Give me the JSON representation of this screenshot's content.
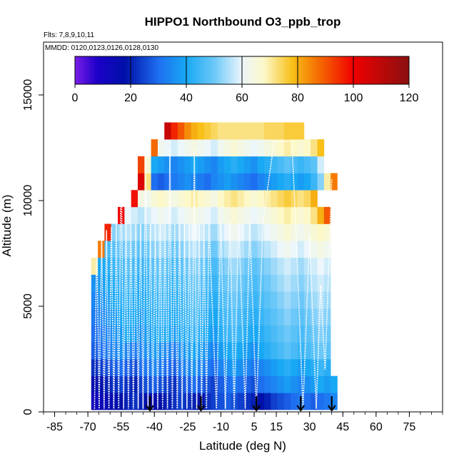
{
  "chart_data": {
    "type": "heatmap",
    "title": "HIPPO1 Northbound O3_ppb_trop",
    "flights_note": "Flts: 7,8,9,10,11",
    "dates_note": "MMDD: 0120,0123,0126,0128,0130",
    "xlabel": "Latitude (deg N)",
    "ylabel": "Altitude (m)",
    "xlim": [
      -90,
      90
    ],
    "ylim": [
      0,
      17500
    ],
    "x_ticks": [
      -85,
      -70,
      -55,
      -40,
      -25,
      -10,
      5,
      15,
      30,
      45,
      60,
      75
    ],
    "x_tick_labels": [
      "-85",
      "-70",
      "-55",
      "-40",
      "-25",
      "-10",
      "5",
      "15",
      "30",
      "45",
      "60",
      "75"
    ],
    "y_ticks": [
      0,
      5000,
      10000,
      15000
    ],
    "y_tick_labels": [
      "0",
      "5000",
      "10000",
      "15000"
    ],
    "colorbar": {
      "min": 0,
      "max": 120,
      "ticks": [
        0,
        20,
        40,
        60,
        80,
        100,
        120
      ],
      "tick_labels": [
        "0",
        "20",
        "40",
        "60",
        "80",
        "100",
        "120"
      ],
      "stops": [
        {
          "v": 0,
          "color": "#7a1ee8"
        },
        {
          "v": 8,
          "color": "#1c00c8"
        },
        {
          "v": 18,
          "color": "#0010a8"
        },
        {
          "v": 30,
          "color": "#1e6ef0"
        },
        {
          "v": 40,
          "color": "#18a8f4"
        },
        {
          "v": 50,
          "color": "#6cc8f8"
        },
        {
          "v": 60,
          "color": "#ecf6fb"
        },
        {
          "v": 68,
          "color": "#fcf8c8"
        },
        {
          "v": 78,
          "color": "#f8c018"
        },
        {
          "v": 88,
          "color": "#f46800"
        },
        {
          "v": 100,
          "color": "#f00000"
        },
        {
          "v": 120,
          "color": "#8a1010"
        }
      ]
    },
    "profile_markers_lat": [
      -42,
      -19,
      6,
      26,
      40
    ],
    "altitude_levels_m": [
      500,
      1300,
      2100,
      2900,
      3700,
      4500,
      5300,
      6100,
      6900,
      7700,
      8500,
      9300,
      10100,
      10900,
      11700,
      12500,
      13300
    ],
    "latitude_bins_deg": [
      -67,
      -64,
      -61,
      -58,
      -55,
      -52,
      -49,
      -46,
      -43,
      -40,
      -37,
      -34,
      -31,
      -28,
      -25,
      -22,
      -19,
      -16,
      -13,
      -10,
      -7,
      -4,
      -1,
      2,
      5,
      8,
      11,
      14,
      17,
      20,
      23,
      26,
      29,
      32,
      35,
      38,
      41
    ],
    "o3_ppb_by_level": [
      [
        12,
        14,
        15,
        16,
        18,
        20,
        22,
        20,
        18,
        16,
        18,
        20,
        22,
        24,
        22,
        20,
        18,
        22,
        24,
        26,
        28,
        26,
        24,
        22,
        20,
        18,
        20,
        24,
        26,
        28,
        30,
        32,
        30,
        28,
        30,
        32,
        34
      ],
      [
        16,
        18,
        20,
        22,
        24,
        22,
        20,
        24,
        26,
        28,
        26,
        24,
        22,
        26,
        28,
        30,
        28,
        26,
        24,
        28,
        30,
        32,
        30,
        28,
        26,
        30,
        32,
        34,
        36,
        38,
        36,
        34,
        36,
        38,
        40,
        38,
        40
      ],
      [
        22,
        24,
        26,
        28,
        30,
        28,
        26,
        30,
        32,
        34,
        32,
        30,
        28,
        32,
        34,
        36,
        34,
        32,
        30,
        34,
        36,
        38,
        36,
        34,
        32,
        34,
        36,
        38,
        40,
        42,
        40,
        38,
        40,
        42,
        44,
        42,
        null
      ],
      [
        28,
        30,
        32,
        34,
        36,
        34,
        32,
        34,
        36,
        38,
        36,
        34,
        32,
        36,
        38,
        40,
        38,
        36,
        34,
        38,
        40,
        42,
        40,
        38,
        36,
        40,
        42,
        44,
        46,
        48,
        46,
        44,
        46,
        48,
        50,
        48,
        null
      ],
      [
        30,
        32,
        34,
        36,
        38,
        40,
        38,
        36,
        38,
        40,
        42,
        40,
        38,
        40,
        42,
        44,
        42,
        40,
        38,
        42,
        44,
        46,
        44,
        42,
        40,
        42,
        44,
        46,
        48,
        50,
        48,
        46,
        48,
        50,
        52,
        50,
        null
      ],
      [
        32,
        34,
        36,
        38,
        40,
        42,
        40,
        38,
        40,
        42,
        44,
        42,
        40,
        42,
        44,
        46,
        44,
        42,
        40,
        44,
        46,
        48,
        46,
        44,
        42,
        44,
        46,
        48,
        50,
        52,
        50,
        48,
        50,
        52,
        54,
        52,
        null
      ],
      [
        34,
        36,
        38,
        40,
        42,
        44,
        42,
        40,
        42,
        44,
        46,
        44,
        42,
        44,
        46,
        48,
        46,
        44,
        42,
        46,
        48,
        50,
        48,
        46,
        44,
        46,
        48,
        50,
        52,
        54,
        52,
        50,
        52,
        54,
        56,
        54,
        null
      ],
      [
        36,
        38,
        40,
        42,
        44,
        46,
        44,
        42,
        44,
        46,
        48,
        46,
        44,
        46,
        48,
        50,
        48,
        46,
        44,
        48,
        50,
        52,
        50,
        48,
        46,
        48,
        50,
        52,
        54,
        56,
        54,
        52,
        54,
        56,
        58,
        56,
        null
      ],
      [
        70,
        40,
        42,
        44,
        46,
        48,
        46,
        44,
        46,
        48,
        50,
        48,
        46,
        48,
        50,
        52,
        50,
        48,
        46,
        50,
        52,
        54,
        52,
        50,
        48,
        50,
        52,
        54,
        56,
        58,
        56,
        54,
        56,
        58,
        60,
        58,
        null
      ],
      [
        null,
        86,
        46,
        48,
        50,
        52,
        50,
        48,
        50,
        52,
        54,
        52,
        50,
        52,
        54,
        56,
        54,
        52,
        50,
        54,
        56,
        58,
        56,
        54,
        52,
        54,
        56,
        58,
        60,
        62,
        60,
        58,
        60,
        62,
        64,
        62,
        null
      ],
      [
        null,
        null,
        96,
        52,
        54,
        56,
        54,
        52,
        54,
        56,
        58,
        56,
        54,
        56,
        58,
        60,
        58,
        56,
        54,
        58,
        60,
        62,
        60,
        58,
        56,
        58,
        60,
        62,
        64,
        66,
        64,
        62,
        64,
        66,
        68,
        66,
        null
      ],
      [
        null,
        null,
        null,
        null,
        100,
        60,
        58,
        56,
        58,
        60,
        62,
        60,
        58,
        60,
        62,
        64,
        62,
        60,
        58,
        62,
        64,
        66,
        64,
        62,
        60,
        62,
        64,
        66,
        68,
        70,
        68,
        66,
        68,
        72,
        80,
        90,
        null
      ],
      [
        null,
        null,
        null,
        null,
        null,
        null,
        98,
        64,
        62,
        66,
        68,
        66,
        64,
        66,
        68,
        70,
        68,
        66,
        64,
        68,
        70,
        72,
        70,
        68,
        66,
        68,
        70,
        72,
        74,
        76,
        74,
        72,
        74,
        80,
        null,
        null,
        null
      ],
      [
        null,
        null,
        null,
        null,
        null,
        null,
        null,
        104,
        72,
        30,
        28,
        30,
        32,
        34,
        36,
        34,
        32,
        30,
        34,
        36,
        38,
        36,
        34,
        32,
        30,
        34,
        36,
        38,
        40,
        42,
        40,
        38,
        40,
        44,
        52,
        70,
        86
      ],
      [
        null,
        null,
        null,
        null,
        null,
        null,
        null,
        92,
        66,
        40,
        38,
        36,
        34,
        36,
        38,
        40,
        38,
        36,
        34,
        38,
        40,
        42,
        40,
        38,
        36,
        40,
        42,
        44,
        46,
        48,
        46,
        44,
        46,
        48,
        58,
        null,
        null
      ],
      [
        null,
        null,
        null,
        null,
        null,
        null,
        null,
        null,
        null,
        88,
        62,
        60,
        58,
        60,
        62,
        64,
        62,
        60,
        58,
        62,
        64,
        66,
        64,
        62,
        60,
        62,
        64,
        66,
        68,
        70,
        68,
        66,
        68,
        72,
        78,
        null,
        null
      ],
      [
        null,
        null,
        null,
        null,
        null,
        null,
        null,
        null,
        null,
        null,
        null,
        108,
        96,
        90,
        84,
        80,
        78,
        76,
        74,
        72,
        72,
        72,
        72,
        72,
        72,
        72,
        74,
        74,
        74,
        76,
        76,
        76,
        null,
        null,
        null,
        null,
        null
      ]
    ]
  }
}
